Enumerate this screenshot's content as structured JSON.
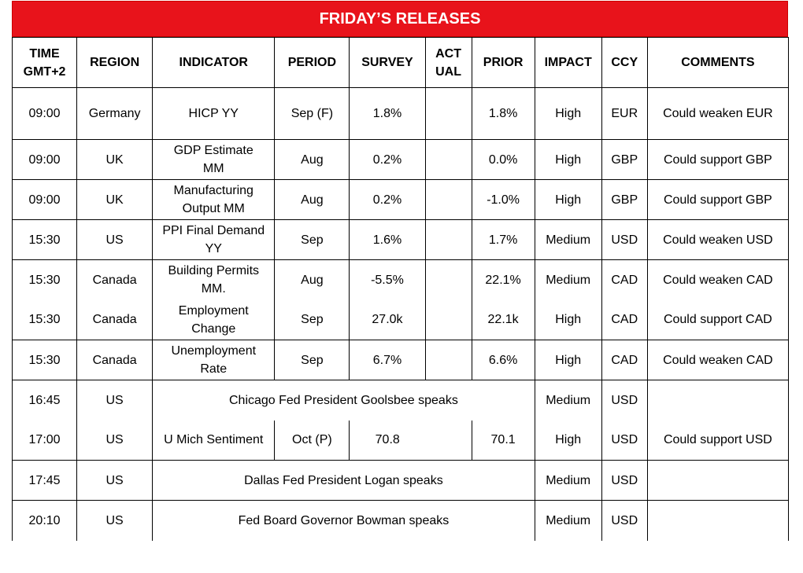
{
  "title": "FRIDAY’S RELEASES",
  "headers": {
    "time_line1": "TIME",
    "time_line2": "GMT+2",
    "region": "REGION",
    "indicator": "INDICATOR",
    "period": "PERIOD",
    "survey": "SURVEY",
    "actual_line1": "ACT",
    "actual_line2": "UAL",
    "prior": "PRIOR",
    "impact": "IMPACT",
    "ccy": "CCY",
    "comments": "COMMENTS"
  },
  "rows": [
    {
      "time": "09:00",
      "region": "Germany",
      "ind1": "HICP YY",
      "ind2": "",
      "period": "Sep (F)",
      "survey": "1.8%",
      "actual": "",
      "prior": "1.8%",
      "impact": "High",
      "ccy": "EUR",
      "comment": "Could weaken EUR"
    },
    {
      "time": "09:00",
      "region": "UK",
      "ind1": "GDP Estimate",
      "ind2": "MM",
      "period": "Aug",
      "survey": "0.2%",
      "actual": "",
      "prior": "0.0%",
      "impact": "High",
      "ccy": "GBP",
      "comment": "Could support GBP"
    },
    {
      "time": "09:00",
      "region": "UK",
      "ind1": "Manufacturing",
      "ind2": "Output MM",
      "period": "Aug",
      "survey": "0.2%",
      "actual": "",
      "prior": "-1.0%",
      "impact": "High",
      "ccy": "GBP",
      "comment": "Could support GBP"
    },
    {
      "time": "15:30",
      "region": "US",
      "ind1": "PPI Final Demand",
      "ind2": "YY",
      "period": "Sep",
      "survey": "1.6%",
      "actual": "",
      "prior": "1.7%",
      "impact": "Medium",
      "ccy": "USD",
      "comment": "Could weaken USD"
    },
    {
      "time": "15:30",
      "region": "Canada",
      "ind1": "Building Permits",
      "ind2": "MM.",
      "period": "Aug",
      "survey": "-5.5%",
      "actual": "",
      "prior": "22.1%",
      "impact": "Medium",
      "ccy": "CAD",
      "comment": "Could weaken CAD"
    },
    {
      "time": "15:30",
      "region": "Canada",
      "ind1": "Employment",
      "ind2": "Change",
      "period": "Sep",
      "survey": "27.0k",
      "actual": "",
      "prior": "22.1k",
      "impact": "High",
      "ccy": "CAD",
      "comment": "Could support CAD"
    },
    {
      "time": "15:30",
      "region": "Canada",
      "ind1": "Unemployment",
      "ind2": "Rate",
      "period": "Sep",
      "survey": "6.7%",
      "actual": "",
      "prior": "6.6%",
      "impact": "High",
      "ccy": "CAD",
      "comment": "Could weaken CAD"
    }
  ],
  "events": {
    "goolsbee": {
      "time": "16:45",
      "region": "US",
      "text": "Chicago Fed President Goolsbee speaks",
      "impact": "Medium",
      "ccy": "USD",
      "comment": ""
    },
    "umich": {
      "time": "17:00",
      "region": "US",
      "indicator": "U Mich Sentiment",
      "period": "Oct (P)",
      "survey": "70.8",
      "actual": "",
      "prior": "70.1",
      "impact": "High",
      "ccy": "USD",
      "comment": "Could support USD"
    },
    "logan": {
      "time": "17:45",
      "region": "US",
      "text": "Dallas Fed President Logan speaks",
      "impact": "Medium",
      "ccy": "USD",
      "comment": ""
    },
    "bowman": {
      "time": "20:10",
      "region": "US",
      "text": "Fed Board Governor Bowman speaks",
      "impact": "Medium",
      "ccy": "USD",
      "comment": ""
    }
  }
}
